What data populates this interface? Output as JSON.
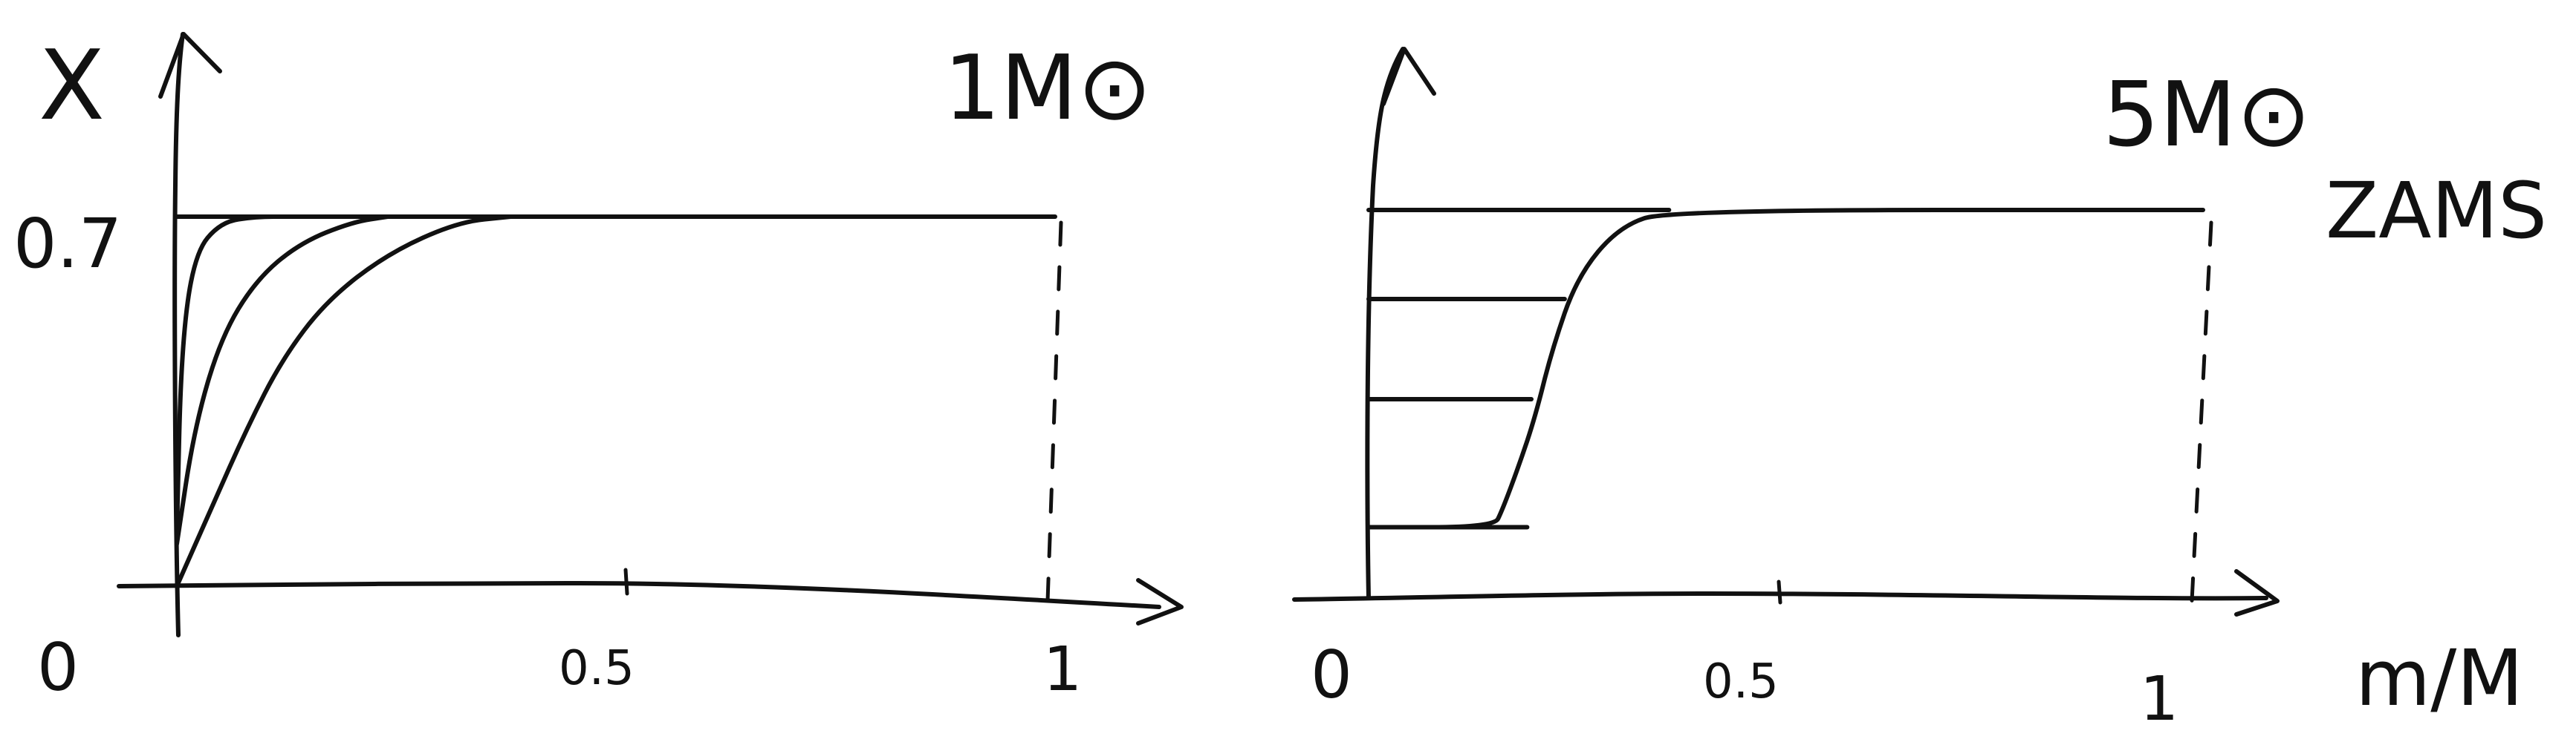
{
  "panels": [
    {
      "mass_label": "1M⊙",
      "ylabel": "X",
      "y_tick_label": "0.7",
      "x_origin_label": "0",
      "x_mid_label": "0.5",
      "x_end_label": "1",
      "right_label": "",
      "xlabel": ""
    },
    {
      "mass_label": "5M⊙",
      "ylabel": "",
      "y_tick_label": "",
      "x_origin_label": "0",
      "x_mid_label": "0.5",
      "x_end_label": "1",
      "right_label": "ZAMS",
      "xlabel": "m/M"
    }
  ],
  "chart_data": [
    {
      "type": "line",
      "xlim": [
        0,
        1.1
      ],
      "ylim": [
        0,
        0.8
      ],
      "x_ticks": [
        0,
        0.5,
        1
      ],
      "y_ticks": [
        0.7
      ],
      "series": [
        {
          "x": [
            0.0,
            0.005,
            0.02,
            0.05,
            0.09,
            0.13
          ],
          "y": [
            0.1,
            0.45,
            0.63,
            0.69,
            0.7,
            0.7
          ]
        },
        {
          "x": [
            0.0,
            0.02,
            0.05,
            0.09,
            0.14,
            0.2,
            0.24
          ],
          "y": [
            0.08,
            0.3,
            0.47,
            0.58,
            0.65,
            0.69,
            0.7
          ]
        },
        {
          "x": [
            0.0,
            0.04,
            0.08,
            0.12,
            0.17,
            0.24,
            0.32,
            0.38
          ],
          "y": [
            0.0,
            0.15,
            0.3,
            0.43,
            0.54,
            0.63,
            0.69,
            0.7
          ]
        },
        {
          "x": [
            0.0,
            0.38,
            1.0
          ],
          "y": [
            0.7,
            0.7,
            0.7
          ]
        }
      ]
    },
    {
      "type": "line",
      "xlim": [
        0,
        1.1
      ],
      "ylim": [
        0,
        0.8
      ],
      "x_ticks": [
        0,
        0.5,
        1
      ],
      "series": [
        {
          "x": [
            0.0,
            0.15,
            0.16,
            0.18,
            0.2,
            0.22,
            0.25,
            0.3,
            0.36,
            1.0
          ],
          "y": [
            0.13,
            0.13,
            0.16,
            0.24,
            0.33,
            0.45,
            0.58,
            0.67,
            0.7,
            0.7
          ]
        },
        {
          "x": [
            0.0,
            0.19
          ],
          "y": [
            0.13,
            0.13
          ]
        },
        {
          "x": [
            0.0,
            0.195
          ],
          "y": [
            0.36,
            0.36
          ]
        },
        {
          "x": [
            0.0,
            0.235
          ],
          "y": [
            0.54,
            0.54
          ]
        },
        {
          "x": [
            0.0,
            0.36
          ],
          "y": [
            0.7,
            0.7
          ]
        }
      ]
    }
  ]
}
